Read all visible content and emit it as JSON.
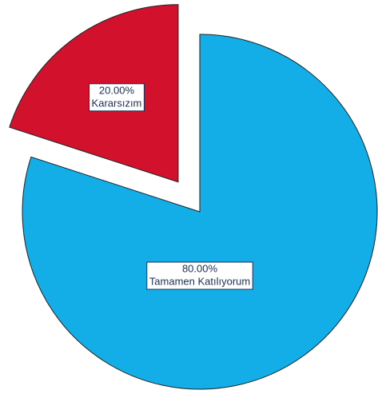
{
  "chart_data": {
    "type": "pie",
    "categories": [
      "Tamamen Katılıyorum",
      "Kararsızım"
    ],
    "values": [
      80,
      20
    ],
    "value_labels": [
      "80.00%",
      "20.00%"
    ],
    "colors": [
      "#13aee8",
      "#d2112d"
    ]
  }
}
